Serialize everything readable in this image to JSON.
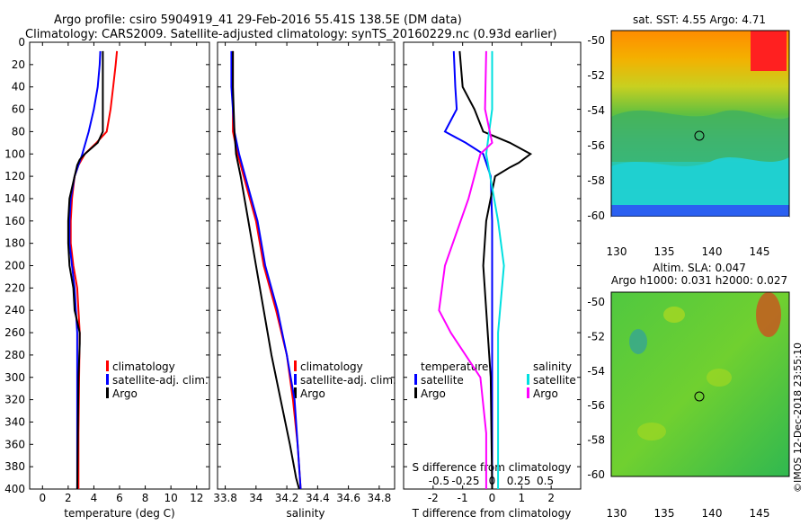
{
  "header": {
    "line1": "Argo profile: csiro 5904919_41 29-Feb-2016 55.41S 138.5E (DM data)",
    "line2": "Climatology: CARS2009. Satellite-adjusted climatology: synTS_20160229.nc (0.93d earlier)"
  },
  "maps": {
    "top_title": "sat. SST: 4.55 Argo: 4.71",
    "bottom_title1": "Altim. SLA: 0.047",
    "bottom_title2": "Argo h1000: 0.031 h2000: 0.027",
    "lat_ticks": [
      "-50",
      "-52",
      "-54",
      "-56",
      "-58",
      "-60"
    ],
    "lon_ticks": [
      "130",
      "135",
      "140",
      "145"
    ],
    "watermark": "©IMOS 12-Dec-2018 23:55:10"
  },
  "colors": {
    "climatology": "#ff0000",
    "satellite": "#0000ff",
    "argo": "#000000",
    "sal_satellite": "#00e0e0",
    "sal_argo": "#ff00ff"
  },
  "chart_data": [
    {
      "type": "line",
      "name": "temperature",
      "xlabel": "temperature (deg C)",
      "xlim": [
        -1,
        13
      ],
      "ylim": [
        0,
        400
      ],
      "xticks": [
        "0",
        "2",
        "4",
        "6",
        "8",
        "10",
        "12"
      ],
      "yticks": [
        "0",
        "20",
        "40",
        "60",
        "80",
        "100",
        "120",
        "140",
        "160",
        "180",
        "200",
        "220",
        "240",
        "260",
        "280",
        "300",
        "320",
        "340",
        "360",
        "380",
        "400"
      ],
      "legend": [
        "climatology",
        "satellite-adj. clim.",
        "Argo"
      ],
      "series": [
        {
          "name": "climatology",
          "depth": [
            8,
            20,
            40,
            60,
            80,
            90,
            100,
            110,
            120,
            140,
            160,
            180,
            200,
            220,
            240,
            260,
            300,
            350,
            400
          ],
          "values": [
            5.8,
            5.7,
            5.5,
            5.3,
            5.0,
            4.2,
            3.3,
            2.8,
            2.5,
            2.3,
            2.2,
            2.2,
            2.4,
            2.7,
            2.8,
            2.9,
            2.85,
            2.8,
            2.8
          ]
        },
        {
          "name": "satellite-adj. clim.",
          "depth": [
            8,
            20,
            40,
            60,
            80,
            100,
            110,
            120,
            140,
            160,
            180,
            200,
            220,
            240,
            260,
            300,
            350,
            400
          ],
          "values": [
            4.5,
            4.45,
            4.3,
            4.0,
            3.6,
            3.1,
            2.8,
            2.5,
            2.2,
            2.1,
            2.1,
            2.3,
            2.5,
            2.6,
            2.7,
            2.7,
            2.7,
            2.7
          ]
        },
        {
          "name": "Argo",
          "depth": [
            8,
            20,
            40,
            60,
            80,
            90,
            100,
            105,
            110,
            120,
            140,
            160,
            180,
            200,
            220,
            240,
            250,
            260,
            270,
            300,
            350,
            400
          ],
          "values": [
            4.7,
            4.7,
            4.7,
            4.7,
            4.7,
            4.3,
            3.3,
            2.9,
            2.7,
            2.5,
            2.1,
            2.0,
            2.0,
            2.1,
            2.4,
            2.5,
            2.7,
            2.9,
            2.9,
            2.8,
            2.75,
            2.7
          ]
        }
      ]
    },
    {
      "type": "line",
      "name": "salinity",
      "xlabel": "salinity",
      "xlim": [
        33.75,
        34.9
      ],
      "ylim": [
        0,
        400
      ],
      "xticks": [
        "33.8",
        "34",
        "34.2",
        "34.4",
        "34.6",
        "34.8"
      ],
      "legend": [
        "climatology",
        "satellite-adj. clim.",
        "Argo"
      ],
      "series": [
        {
          "name": "climatology",
          "depth": [
            8,
            40,
            80,
            100,
            120,
            160,
            200,
            240,
            280,
            320,
            360,
            400
          ],
          "values": [
            33.85,
            33.85,
            33.85,
            33.88,
            33.92,
            34.0,
            34.05,
            34.13,
            34.2,
            34.24,
            34.27,
            34.29
          ]
        },
        {
          "name": "satellite-adj. clim.",
          "depth": [
            8,
            40,
            80,
            100,
            120,
            160,
            200,
            240,
            280,
            320,
            360,
            400
          ],
          "values": [
            33.84,
            33.84,
            33.86,
            33.89,
            33.93,
            34.01,
            34.06,
            34.14,
            34.2,
            34.25,
            34.27,
            34.29
          ]
        },
        {
          "name": "Argo",
          "depth": [
            8,
            40,
            80,
            100,
            120,
            160,
            200,
            240,
            280,
            320,
            360,
            390,
            400
          ],
          "values": [
            33.85,
            33.85,
            33.86,
            33.87,
            33.9,
            33.95,
            34.0,
            34.05,
            34.1,
            34.16,
            34.22,
            34.26,
            34.28
          ]
        }
      ]
    },
    {
      "type": "line",
      "name": "difference from climatology",
      "xlabel": "T difference from climatology",
      "xlabel_top": "S difference from climatology",
      "xlim": [
        -3,
        3
      ],
      "ylim": [
        0,
        400
      ],
      "xticks": [
        "-2",
        "-1",
        "0",
        "1",
        "2"
      ],
      "xticks_top": [
        "-0.5",
        "-0.25",
        "0",
        "0.25",
        "0.5"
      ],
      "legend": [
        "temperature",
        "satellite",
        "Argo",
        "salinity",
        "satellite",
        "Argo"
      ],
      "series": [
        {
          "name": "T satellite",
          "depth": [
            8,
            40,
            60,
            80,
            90,
            100,
            120,
            160,
            200,
            300,
            400
          ],
          "values": [
            -1.3,
            -1.25,
            -1.2,
            -1.6,
            -0.9,
            -0.3,
            -0.05,
            0,
            0,
            0,
            0
          ]
        },
        {
          "name": "T Argo",
          "depth": [
            8,
            40,
            60,
            80,
            90,
            100,
            108,
            112,
            120,
            160,
            200,
            300,
            400
          ],
          "values": [
            -1.1,
            -1.0,
            -0.6,
            -0.3,
            0.6,
            1.3,
            0.9,
            0.6,
            0.1,
            -0.2,
            -0.3,
            -0.05,
            0.0
          ]
        },
        {
          "name": "S satellite",
          "depth": [
            8,
            60,
            100,
            160,
            200,
            260,
            300,
            400
          ],
          "values": [
            0.0,
            0.0,
            -0.05,
            0.05,
            0.1,
            0.05,
            0.05,
            0.05
          ]
        },
        {
          "name": "S Argo",
          "depth": [
            8,
            60,
            90,
            100,
            140,
            200,
            240,
            260,
            300,
            350,
            400
          ],
          "values": [
            -0.05,
            -0.06,
            0.0,
            -0.1,
            -0.2,
            -0.4,
            -0.45,
            -0.35,
            -0.1,
            -0.05,
            -0.05
          ]
        }
      ]
    }
  ]
}
